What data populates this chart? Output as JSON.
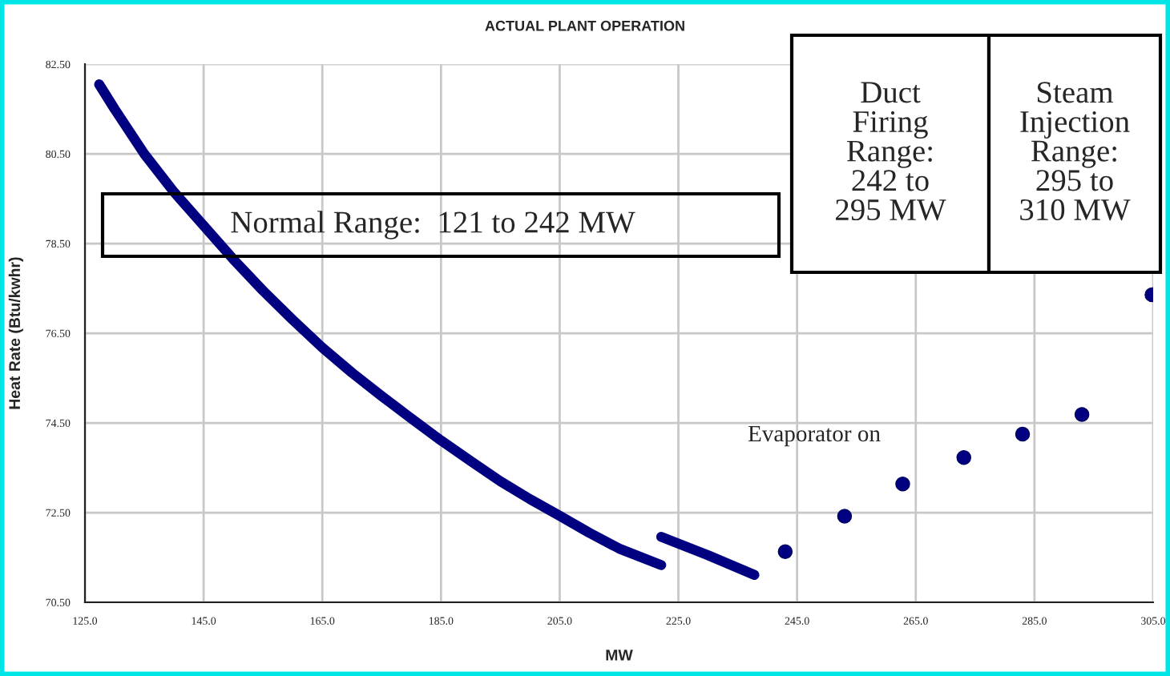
{
  "chart_data": {
    "type": "line",
    "title": "ACTUAL PLANT OPERATION",
    "xlabel": "MW",
    "ylabel": "Heat Rate (Btu/kwhr)",
    "series": [
      {
        "color": "#000080",
        "x": [
          127.4,
          130,
          135,
          140,
          145,
          150,
          155,
          160,
          165,
          170,
          175,
          180,
          185,
          190,
          195,
          200,
          205,
          210,
          215,
          222.1
        ],
        "values": [
          82.05,
          81.5,
          80.5,
          79.65,
          78.9,
          78.15,
          77.45,
          76.8,
          76.18,
          75.62,
          75.1,
          74.6,
          74.11,
          73.65,
          73.2,
          72.8,
          72.43,
          72.05,
          71.7,
          71.33
        ]
      },
      {
        "color": "#000080",
        "x": [
          222.1,
          230,
          237.8
        ],
        "values": [
          71.96,
          71.55,
          71.11
        ]
      },
      {
        "type": "scatter",
        "color": "#000080",
        "marker": "circle",
        "x": [
          243.0,
          253.0,
          262.8,
          273.1,
          283.0,
          293.0,
          304.8
        ],
        "values": [
          71.63,
          72.42,
          73.14,
          73.73,
          74.25,
          74.69,
          77.36
        ]
      }
    ],
    "xlim": [
      125,
      305
    ],
    "xticks": [
      {
        "value": 125,
        "label": "125.0"
      },
      {
        "value": 145,
        "label": "145.0"
      },
      {
        "value": 165,
        "label": "165.0"
      },
      {
        "value": 185,
        "label": "185.0"
      },
      {
        "value": 205,
        "label": "205.0"
      },
      {
        "value": 225,
        "label": "225.0"
      },
      {
        "value": 245,
        "label": "245.0"
      },
      {
        "value": 265,
        "label": "265.0"
      },
      {
        "value": 285,
        "label": "285.0"
      },
      {
        "value": 305,
        "label": "305.0"
      }
    ],
    "ylim": [
      70.5,
      82.5
    ],
    "yticks": [
      {
        "value": 70.5,
        "label": "70.50"
      },
      {
        "value": 72.5,
        "label": "72.50"
      },
      {
        "value": 74.5,
        "label": "74.50"
      },
      {
        "value": 76.5,
        "label": "76.50"
      },
      {
        "value": 78.5,
        "label": "78.50"
      },
      {
        "value": 80.5,
        "label": "80.50"
      },
      {
        "value": 82.5,
        "label": "82.50"
      }
    ],
    "grid": true,
    "legend": false,
    "annotations": [
      "Normal Range:  121 to 242 MW",
      "Duct\nFiring\nRange:\n242 to\n295 MW",
      "Steam\nInjection\nRange:\n295 to\n310 MW",
      "Evaporator on"
    ]
  }
}
